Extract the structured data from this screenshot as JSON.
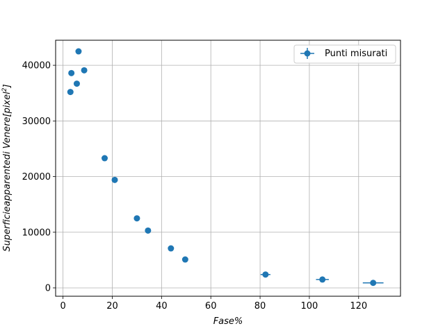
{
  "chart_data": {
    "type": "scatter",
    "title": "",
    "xlabel": "Fase%",
    "ylabel_base": "Superficieapparentedi Venere[pixel",
    "ylabel_sup": "2",
    "ylabel_end": "]",
    "xlim": [
      -3,
      137
    ],
    "ylim": [
      -1500,
      44500
    ],
    "xticks": [
      0,
      20,
      40,
      60,
      80,
      100,
      120
    ],
    "yticks": [
      0,
      10000,
      20000,
      30000,
      40000
    ],
    "grid": true,
    "legend_position": "top-right",
    "series": [
      {
        "name": "Punti misurati",
        "color": "#1f77b4",
        "marker": "circle",
        "points": [
          {
            "x": 3.0,
            "y": 35200,
            "xerr": 0
          },
          {
            "x": 3.4,
            "y": 38600,
            "xerr": 0
          },
          {
            "x": 5.6,
            "y": 36700,
            "xerr": 0
          },
          {
            "x": 6.3,
            "y": 42500,
            "xerr": 0
          },
          {
            "x": 8.6,
            "y": 39100,
            "xerr": 0
          },
          {
            "x": 16.9,
            "y": 23300,
            "xerr": 0
          },
          {
            "x": 21.0,
            "y": 19400,
            "xerr": 0
          },
          {
            "x": 30.0,
            "y": 12500,
            "xerr": 0
          },
          {
            "x": 34.5,
            "y": 10300,
            "xerr": 0
          },
          {
            "x": 43.8,
            "y": 7100,
            "xerr": 0
          },
          {
            "x": 49.6,
            "y": 5100,
            "xerr": 0
          },
          {
            "x": 82.2,
            "y": 2400,
            "xerr": 2.0
          },
          {
            "x": 105.3,
            "y": 1500,
            "xerr": 2.6
          },
          {
            "x": 125.9,
            "y": 900,
            "xerr": 4.2
          }
        ]
      }
    ]
  }
}
